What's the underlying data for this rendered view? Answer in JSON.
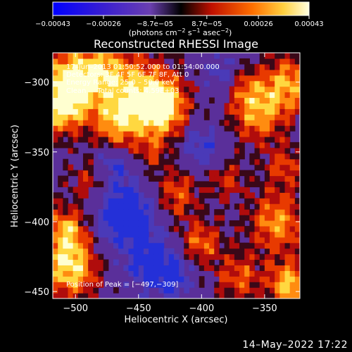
{
  "chart_data": {
    "type": "heatmap",
    "title": "Reconstructed RHESSI Image",
    "xlabel": "Heliocentric X (arcsec)",
    "ylabel": "Heliocentric Y (arcsec)",
    "xlim": [
      -518,
      -322
    ],
    "ylim": [
      -455,
      -279
    ],
    "x_ticks": [
      -500,
      -450,
      -400,
      -350
    ],
    "y_ticks": [
      -450,
      -400,
      -350,
      -300
    ],
    "x_tick_labels": [
      "−500",
      "−450",
      "−400",
      "−350"
    ],
    "y_tick_labels": [
      "−450",
      "−400",
      "−350",
      "−300"
    ],
    "colorbar": {
      "min": -0.00043,
      "max": 0.00043,
      "tick_values": [
        -0.00043,
        -0.00026,
        -8.7e-05,
        8.7e-05,
        0.00026,
        0.00043
      ],
      "tick_labels": [
        "−0.00043",
        "−0.00026",
        "−8.7e−05",
        "8.7e−05",
        "0.00026",
        "0.00043"
      ],
      "unit_main": "(photons cm",
      "unit_sup1": "−2",
      "unit_mid1": " s",
      "unit_sup2": "−1",
      "unit_mid2": " asec",
      "unit_sup3": "−2",
      "unit_end": ")"
    },
    "annotations": {
      "time": "17–Jun–2013 01:50:52.000 to 01:54:00.000",
      "detectors": "Detectors: 3F 4F 5F 6F 7F 8F, Att 0",
      "energy": "Energy Range: 25.0 – 50.0 keV",
      "clean": "Clean     Total counts: 4.59E+03",
      "peak": "Position of Peak = [−497,−309]"
    },
    "peak_position": [
      -497,
      -309
    ],
    "colors": {
      "low": "#0000ff",
      "mid_low": "#6a3fb0",
      "zero": "#000000",
      "mid_high": "#d01010",
      "high": "#ffffd0"
    }
  },
  "footer": {
    "date": "14–May–2022 17:22"
  }
}
